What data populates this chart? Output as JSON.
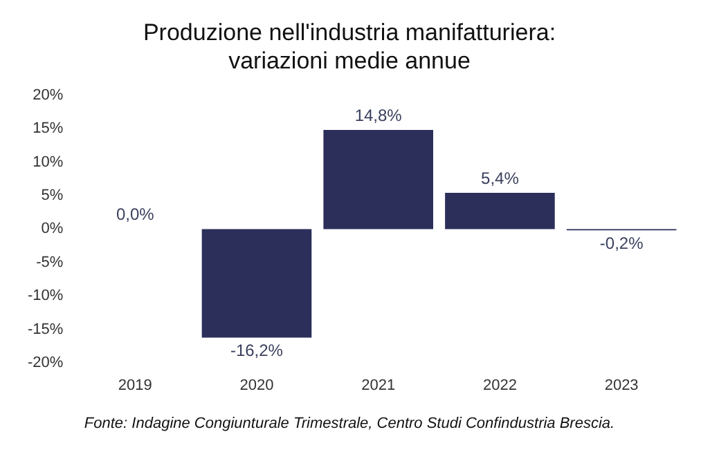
{
  "chart_data": {
    "type": "bar",
    "title": "Produzione nell'industria manifatturiera: variazioni medie annue",
    "categories": [
      "2019",
      "2020",
      "2021",
      "2022",
      "2023"
    ],
    "values": [
      0.0,
      -16.2,
      14.8,
      5.4,
      -0.2
    ],
    "value_labels": [
      "0,0%",
      "-16,2%",
      "14,8%",
      "5,4%",
      "-0,2%"
    ],
    "color": "#2b2f5a",
    "ylim": [
      -20,
      20
    ],
    "yticks": [
      {
        "value": -20,
        "label": "-20%"
      },
      {
        "value": -15,
        "label": "-15%"
      },
      {
        "value": -10,
        "label": "-10%"
      },
      {
        "value": -5,
        "label": "-5%"
      },
      {
        "value": 0,
        "label": "0%"
      },
      {
        "value": 5,
        "label": "5%"
      },
      {
        "value": 10,
        "label": "10%"
      },
      {
        "value": 15,
        "label": "15%"
      },
      {
        "value": 20,
        "label": "20%"
      }
    ],
    "grid": false,
    "annotations": [
      "Fonte: Indagine Congiunturale Trimestrale, Centro Studi Confindustria Brescia."
    ]
  }
}
